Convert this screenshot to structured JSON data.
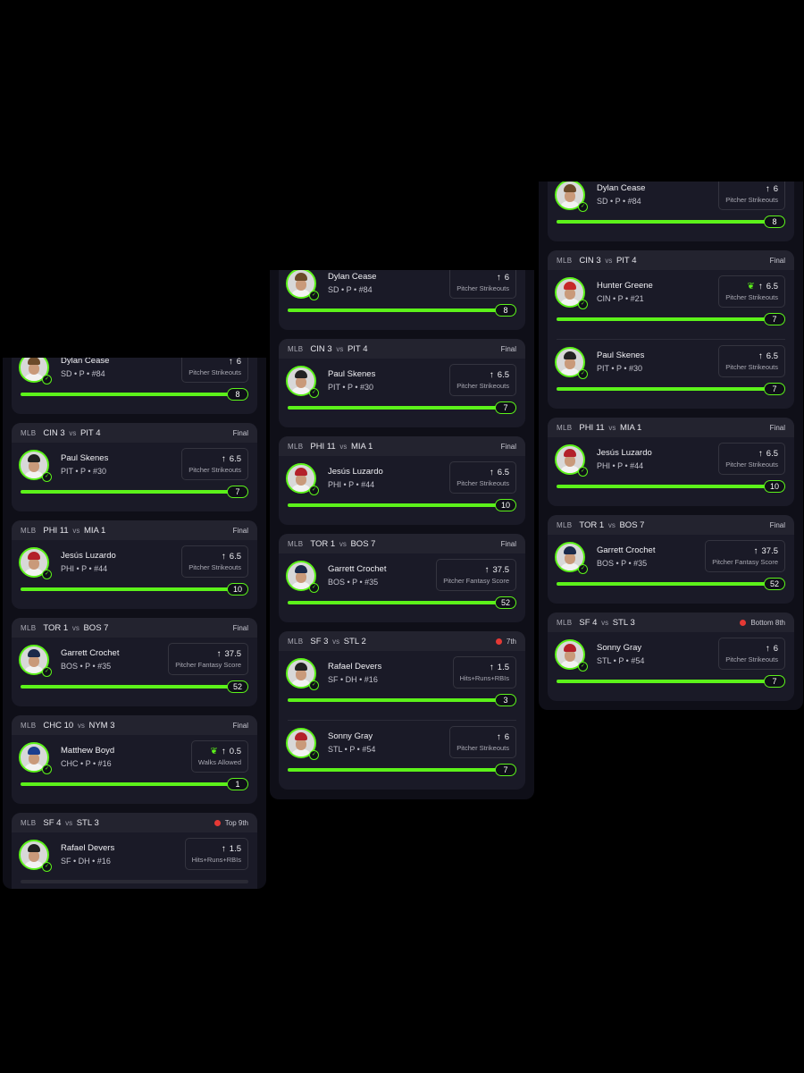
{
  "columns": [
    {
      "cards": [
        {
          "noheader": true,
          "players": [
            {
              "name": "Dylan Cease",
              "meta": "SD • P • #84",
              "line": "6",
              "label": "Pitcher Strikeouts",
              "actual": "8",
              "progress": 1.0,
              "cap": "#6b4a2a",
              "goblin": false
            }
          ]
        },
        {
          "matchup": {
            "away": "CIN",
            "away_score": "3",
            "home": "PIT",
            "home_score": "4"
          },
          "status": "Final",
          "live": false,
          "players": [
            {
              "name": "Paul Skenes",
              "meta": "PIT • P • #30",
              "line": "6.5",
              "label": "Pitcher Strikeouts",
              "actual": "7",
              "progress": 1.0,
              "cap": "#222",
              "goblin": false
            }
          ]
        },
        {
          "matchup": {
            "away": "PHI",
            "away_score": "11",
            "home": "MIA",
            "home_score": "1"
          },
          "status": "Final",
          "live": false,
          "players": [
            {
              "name": "Jesús Luzardo",
              "meta": "PHI • P • #44",
              "line": "6.5",
              "label": "Pitcher Strikeouts",
              "actual": "10",
              "progress": 1.0,
              "cap": "#b3202a",
              "goblin": false
            }
          ]
        },
        {
          "matchup": {
            "away": "TOR",
            "away_score": "1",
            "home": "BOS",
            "home_score": "7"
          },
          "status": "Final",
          "live": false,
          "players": [
            {
              "name": "Garrett Crochet",
              "meta": "BOS • P • #35",
              "line": "37.5",
              "label": "Pitcher Fantasy Score",
              "actual": "52",
              "progress": 1.0,
              "cap": "#1b2a4a",
              "goblin": false
            }
          ]
        },
        {
          "matchup": {
            "away": "CHC",
            "away_score": "10",
            "home": "NYM",
            "home_score": "3"
          },
          "status": "Final",
          "live": false,
          "players": [
            {
              "name": "Matthew Boyd",
              "meta": "CHC • P • #16",
              "line": "0.5",
              "label": "Walks Allowed",
              "actual": "1",
              "progress": 1.0,
              "cap": "#1c3f8f",
              "goblin": true
            }
          ]
        },
        {
          "matchup": {
            "away": "SF",
            "away_score": "4",
            "home": "STL",
            "home_score": "3"
          },
          "status": "Top 9th",
          "live": true,
          "players": [
            {
              "name": "Rafael Devers",
              "meta": "SF • DH • #16",
              "line": "1.5",
              "label": "Hits+Runs+RBIs",
              "actual": "",
              "progress": 0.0,
              "cap": "#222",
              "goblin": false
            }
          ]
        }
      ]
    },
    {
      "cards": [
        {
          "noheader": true,
          "players": [
            {
              "name": "Dylan Cease",
              "meta": "SD • P • #84",
              "line": "6",
              "label": "Pitcher Strikeouts",
              "actual": "8",
              "progress": 1.0,
              "cap": "#6b4a2a",
              "goblin": false
            }
          ]
        },
        {
          "matchup": {
            "away": "CIN",
            "away_score": "3",
            "home": "PIT",
            "home_score": "4"
          },
          "status": "Final",
          "live": false,
          "players": [
            {
              "name": "Paul Skenes",
              "meta": "PIT • P • #30",
              "line": "6.5",
              "label": "Pitcher Strikeouts",
              "actual": "7",
              "progress": 1.0,
              "cap": "#222",
              "goblin": false
            }
          ]
        },
        {
          "matchup": {
            "away": "PHI",
            "away_score": "11",
            "home": "MIA",
            "home_score": "1"
          },
          "status": "Final",
          "live": false,
          "players": [
            {
              "name": "Jesús Luzardo",
              "meta": "PHI • P • #44",
              "line": "6.5",
              "label": "Pitcher Strikeouts",
              "actual": "10",
              "progress": 1.0,
              "cap": "#b3202a",
              "goblin": false
            }
          ]
        },
        {
          "matchup": {
            "away": "TOR",
            "away_score": "1",
            "home": "BOS",
            "home_score": "7"
          },
          "status": "Final",
          "live": false,
          "players": [
            {
              "name": "Garrett Crochet",
              "meta": "BOS • P • #35",
              "line": "37.5",
              "label": "Pitcher Fantasy Score",
              "actual": "52",
              "progress": 1.0,
              "cap": "#1b2a4a",
              "goblin": false
            }
          ]
        },
        {
          "matchup": {
            "away": "SF",
            "away_score": "3",
            "home": "STL",
            "home_score": "2"
          },
          "status": "7th",
          "live": true,
          "players": [
            {
              "name": "Rafael Devers",
              "meta": "SF • DH • #16",
              "line": "1.5",
              "label": "Hits+Runs+RBIs",
              "actual": "3",
              "progress": 1.0,
              "cap": "#222",
              "goblin": false
            },
            {
              "name": "Sonny Gray",
              "meta": "STL • P • #54",
              "line": "6",
              "label": "Pitcher Strikeouts",
              "actual": "7",
              "progress": 1.0,
              "cap": "#b3202a",
              "goblin": false
            }
          ]
        }
      ]
    },
    {
      "cards": [
        {
          "noheader": true,
          "players": [
            {
              "name": "Dylan Cease",
              "meta": "SD • P • #84",
              "line": "6",
              "label": "Pitcher Strikeouts",
              "actual": "8",
              "progress": 1.0,
              "cap": "#6b4a2a",
              "goblin": false
            }
          ]
        },
        {
          "matchup": {
            "away": "CIN",
            "away_score": "3",
            "home": "PIT",
            "home_score": "4"
          },
          "status": "Final",
          "live": false,
          "players": [
            {
              "name": "Hunter Greene",
              "meta": "CIN • P • #21",
              "line": "6.5",
              "label": "Pitcher Strikeouts",
              "actual": "7",
              "progress": 1.0,
              "cap": "#c62828",
              "goblin": true
            },
            {
              "name": "Paul Skenes",
              "meta": "PIT • P • #30",
              "line": "6.5",
              "label": "Pitcher Strikeouts",
              "actual": "7",
              "progress": 1.0,
              "cap": "#222",
              "goblin": false
            }
          ]
        },
        {
          "matchup": {
            "away": "PHI",
            "away_score": "11",
            "home": "MIA",
            "home_score": "1"
          },
          "status": "Final",
          "live": false,
          "players": [
            {
              "name": "Jesús Luzardo",
              "meta": "PHI • P • #44",
              "line": "6.5",
              "label": "Pitcher Strikeouts",
              "actual": "10",
              "progress": 1.0,
              "cap": "#b3202a",
              "goblin": false
            }
          ]
        },
        {
          "matchup": {
            "away": "TOR",
            "away_score": "1",
            "home": "BOS",
            "home_score": "7"
          },
          "status": "Final",
          "live": false,
          "players": [
            {
              "name": "Garrett Crochet",
              "meta": "BOS • P • #35",
              "line": "37.5",
              "label": "Pitcher Fantasy Score",
              "actual": "52",
              "progress": 1.0,
              "cap": "#1b2a4a",
              "goblin": false
            }
          ]
        },
        {
          "matchup": {
            "away": "SF",
            "away_score": "4",
            "home": "STL",
            "home_score": "3"
          },
          "status": "Bottom 8th",
          "live": true,
          "players": [
            {
              "name": "Sonny Gray",
              "meta": "STL • P • #54",
              "line": "6",
              "label": "Pitcher Strikeouts",
              "actual": "7",
              "progress": 1.0,
              "cap": "#b3202a",
              "goblin": false
            }
          ]
        }
      ]
    }
  ],
  "league_label": "MLB",
  "vs_label": "vs",
  "icons": {
    "arrow": "arrow-up-icon",
    "goblin": "goblin-icon",
    "check": "check-icon",
    "live": "live-dot-icon"
  },
  "colors": {
    "accent": "#5cf21a",
    "live": "#e53935",
    "card": "#1a1a27",
    "background": "#0f0f18"
  }
}
